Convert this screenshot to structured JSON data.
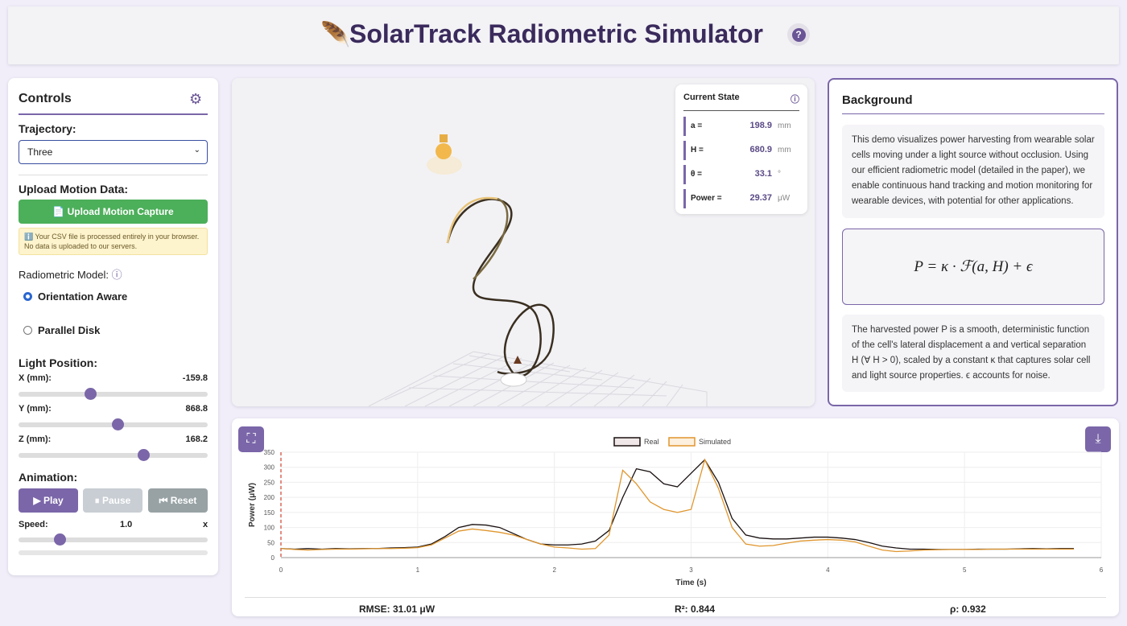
{
  "header": {
    "title": "SolarTrack Radiometric Simulator",
    "help": "?"
  },
  "controls": {
    "title": "Controls",
    "trajectory_label": "Trajectory:",
    "trajectory_value": "Three",
    "upload_label": "Upload Motion Data:",
    "upload_button": "Upload Motion Capture",
    "upload_note": "ℹ️ Your CSV file is processed entirely in your browser. No data is uploaded to our servers.",
    "model_label": "Radiometric Model:",
    "model_options": [
      "Orientation Aware",
      "Parallel Disk"
    ],
    "light_label": "Light Position:",
    "sliders": [
      {
        "label": "X (mm):",
        "value": "-159.8"
      },
      {
        "label": "Y (mm):",
        "value": "868.8"
      },
      {
        "label": "Z (mm):",
        "value": "168.2"
      }
    ],
    "animation_label": "Animation:",
    "buttons": [
      "▶ Play",
      "⏸ Pause",
      "⏮ Reset"
    ],
    "speed": {
      "label": "Speed:",
      "value": "1.0",
      "unit": "x"
    }
  },
  "state": {
    "title": "Current State",
    "rows": [
      {
        "label": "a =",
        "value": "198.9",
        "unit": "mm"
      },
      {
        "label": "H =",
        "value": "680.9",
        "unit": "mm"
      },
      {
        "label": "θ =",
        "value": "33.1",
        "unit": "°"
      },
      {
        "label": "Power =",
        "value": "29.37",
        "unit": "μW"
      }
    ]
  },
  "background": {
    "title": "Background",
    "text1": "This demo visualizes power harvesting from wearable solar cells moving under a light source without occlusion. Using our efficient radiometric model (detailed in the paper), we enable continuous hand tracking and motion monitoring for wearable devices, with potential for other applications.",
    "formula": "P = κ · ℱ(a, H) + ϵ",
    "text2": "The harvested power P is a smooth, deterministic function of the cell's lateral displacement a and vertical separation H (∀ H > 0), scaled by a constant κ that captures solar cell and light source properties. ϵ accounts for noise."
  },
  "chart_data": {
    "type": "line",
    "xlabel": "Time (s)",
    "ylabel": "Power (μW)",
    "xlim": [
      0,
      6
    ],
    "xticks": [
      0,
      1,
      2,
      3,
      4,
      5,
      6
    ],
    "ylim": [
      0,
      350
    ],
    "yticks": [
      0,
      50,
      100,
      150,
      200,
      250,
      300,
      350
    ],
    "grid": true,
    "x": [
      0,
      0.1,
      0.2,
      0.3,
      0.4,
      0.5,
      0.6,
      0.7,
      0.8,
      0.9,
      1.0,
      1.1,
      1.2,
      1.3,
      1.4,
      1.5,
      1.6,
      1.7,
      1.8,
      1.9,
      2.0,
      2.1,
      2.2,
      2.3,
      2.4,
      2.5,
      2.6,
      2.7,
      2.8,
      2.9,
      3.0,
      3.1,
      3.2,
      3.3,
      3.4,
      3.5,
      3.6,
      3.7,
      3.8,
      3.9,
      4.0,
      4.1,
      4.2,
      4.3,
      4.4,
      4.5,
      4.6,
      4.7,
      4.8,
      4.9,
      5.0,
      5.1,
      5.2,
      5.3,
      5.4,
      5.5,
      5.6,
      5.7,
      5.8
    ],
    "series": [
      {
        "name": "Real",
        "color": "#1a1010",
        "values": [
          30,
          28,
          30,
          28,
          30,
          29,
          30,
          30,
          32,
          33,
          35,
          45,
          70,
          100,
          110,
          108,
          100,
          80,
          60,
          45,
          42,
          42,
          45,
          55,
          90,
          200,
          295,
          285,
          245,
          235,
          280,
          325,
          250,
          130,
          75,
          65,
          62,
          62,
          65,
          68,
          68,
          65,
          60,
          50,
          38,
          32,
          28,
          28,
          27,
          27,
          27,
          28,
          28,
          28,
          29,
          30,
          29,
          30,
          30
        ]
      },
      {
        "name": "Simulated",
        "color": "#e0962e",
        "values": [
          30,
          27,
          25,
          27,
          28,
          28,
          29,
          30,
          30,
          31,
          33,
          42,
          65,
          88,
          95,
          90,
          84,
          75,
          60,
          45,
          35,
          32,
          28,
          30,
          75,
          290,
          245,
          185,
          160,
          150,
          160,
          325,
          230,
          100,
          45,
          38,
          40,
          48,
          55,
          58,
          60,
          58,
          52,
          38,
          25,
          20,
          22,
          25,
          26,
          27,
          27,
          27,
          28,
          28,
          28,
          28,
          28,
          28,
          28
        ]
      }
    ]
  },
  "metrics": [
    "RMSE: 31.01 μW",
    "R²: 0.844",
    "ρ: 0.932"
  ]
}
